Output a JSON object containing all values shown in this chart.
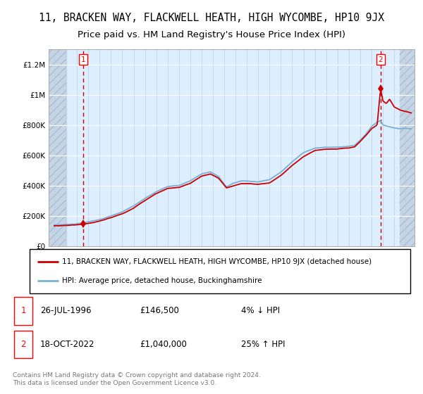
{
  "title": "11, BRACKEN WAY, FLACKWELL HEATH, HIGH WYCOMBE, HP10 9JX",
  "subtitle": "Price paid vs. HM Land Registry's House Price Index (HPI)",
  "ylim": [
    0,
    1300000
  ],
  "xlim_start": 1993.5,
  "xlim_end": 2025.8,
  "yticks": [
    0,
    200000,
    400000,
    600000,
    800000,
    1000000,
    1200000
  ],
  "ytick_labels": [
    "£0",
    "£200K",
    "£400K",
    "£600K",
    "£800K",
    "£1M",
    "£1.2M"
  ],
  "xticks": [
    1994,
    1995,
    1996,
    1997,
    1998,
    1999,
    2000,
    2001,
    2002,
    2003,
    2004,
    2005,
    2006,
    2007,
    2008,
    2009,
    2010,
    2011,
    2012,
    2013,
    2014,
    2015,
    2016,
    2017,
    2018,
    2019,
    2020,
    2021,
    2022,
    2023,
    2024,
    2025
  ],
  "sale1_x": 1996.57,
  "sale1_y": 146500,
  "sale2_x": 2022.8,
  "sale2_y": 1040000,
  "sale1_date": "26-JUL-1996",
  "sale1_price": "£146,500",
  "sale1_hpi_text": "4% ↓ HPI",
  "sale2_date": "18-OCT-2022",
  "sale2_price": "£1,040,000",
  "sale2_hpi_text": "25% ↑ HPI",
  "line1_color": "#cc0000",
  "line2_color": "#7aafd4",
  "background_plot": "#ddeeff",
  "background_hatch": "#c5d5e5",
  "grid_color": "#ffffff",
  "vline_color": "#cc0000",
  "hatch_left_end": 1995.08,
  "hatch_right_start": 2024.5,
  "legend1": "11, BRACKEN WAY, FLACKWELL HEATH, HIGH WYCOMBE, HP10 9JX (detached house)",
  "legend2": "HPI: Average price, detached house, Buckinghamshire",
  "footer": "Contains HM Land Registry data © Crown copyright and database right 2024.\nThis data is licensed under the Open Government Licence v3.0.",
  "title_fontsize": 10.5,
  "subtitle_fontsize": 9.5,
  "tick_fontsize": 7.5,
  "legend_fontsize": 7.5,
  "ann_fontsize": 8.5,
  "footer_fontsize": 6.5
}
